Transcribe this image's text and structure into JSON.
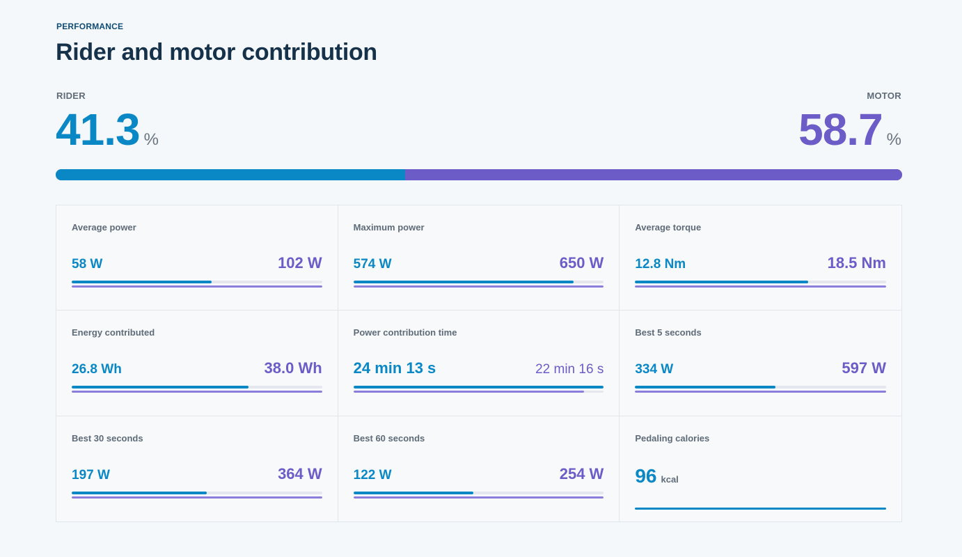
{
  "header": {
    "eyebrow": "PERFORMANCE",
    "title": "Rider and motor contribution"
  },
  "split": {
    "rider_label": "RIDER",
    "motor_label": "MOTOR",
    "rider_pct": "41.3",
    "motor_pct": "58.7",
    "unit": "%",
    "rider_fraction": 0.413,
    "motor_fraction": 0.587
  },
  "colors": {
    "rider": "#0a87c5",
    "motor": "#6b5cc8",
    "motor_bar": "#8b7ddb",
    "track": "#e4e8ee"
  },
  "metrics": [
    {
      "title": "Average power",
      "rider": "58 W",
      "motor": "102 W",
      "rider_fill": 0.56,
      "motor_fill": 1.0
    },
    {
      "title": "Maximum power",
      "rider": "574 W",
      "motor": "650 W",
      "rider_fill": 0.88,
      "motor_fill": 1.0
    },
    {
      "title": "Average torque",
      "rider": "12.8 Nm",
      "motor": "18.5 Nm",
      "rider_fill": 0.69,
      "motor_fill": 1.0
    },
    {
      "title": "Energy contributed",
      "rider": "26.8 Wh",
      "motor": "38.0 Wh",
      "rider_fill": 0.705,
      "motor_fill": 1.0
    },
    {
      "title": "Power contribution time",
      "rider": "24 min 13 s",
      "motor": "22 min 16 s",
      "rider_fill": 1.0,
      "motor_fill": 0.92
    },
    {
      "title": "Best 5 seconds",
      "rider": "334 W",
      "motor": "597 W",
      "rider_fill": 0.56,
      "motor_fill": 1.0
    },
    {
      "title": "Best 30 seconds",
      "rider": "197 W",
      "motor": "364 W",
      "rider_fill": 0.54,
      "motor_fill": 1.0
    },
    {
      "title": "Best 60 seconds",
      "rider": "122 W",
      "motor": "254 W",
      "rider_fill": 0.48,
      "motor_fill": 1.0
    },
    {
      "title": "Pedaling calories",
      "rider": "96",
      "rider_unit": "kcal"
    }
  ]
}
